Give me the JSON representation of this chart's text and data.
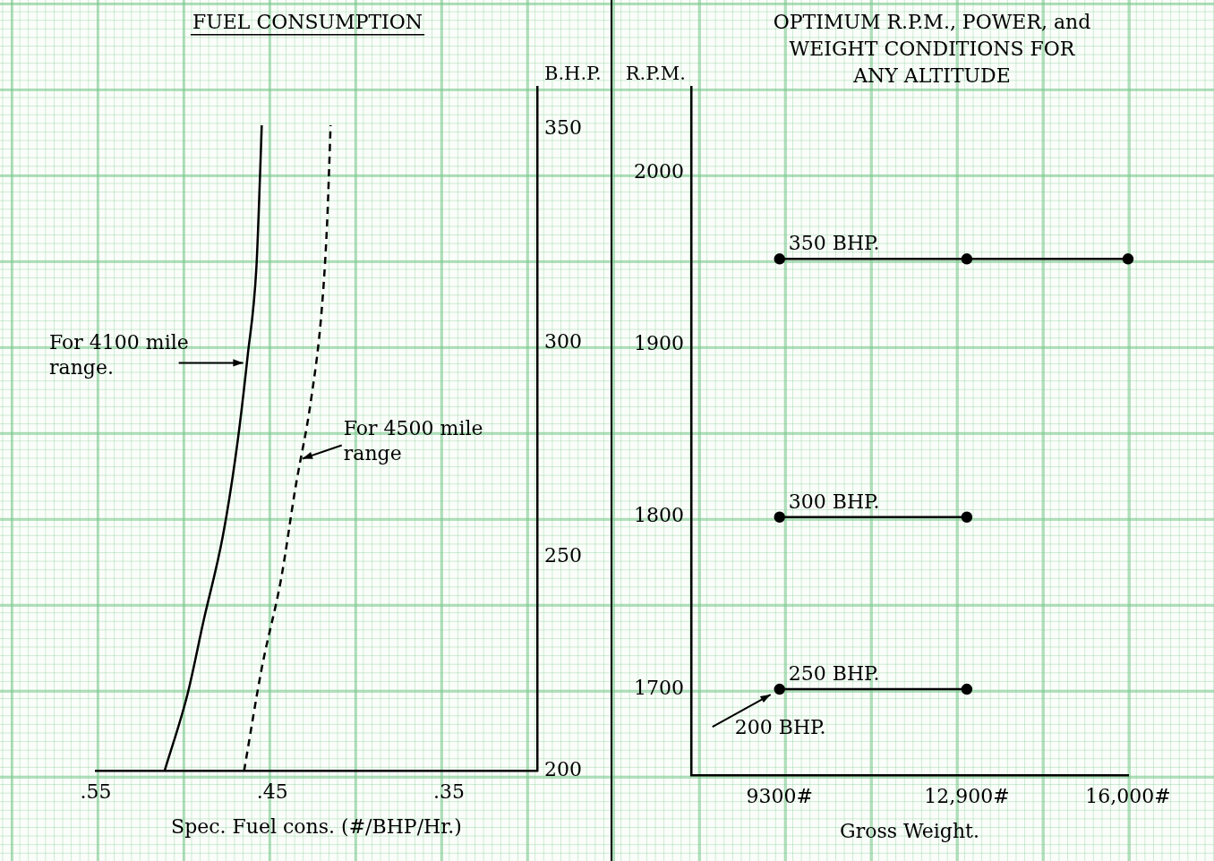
{
  "chart_data": [
    {
      "type": "line",
      "title": "FUEL CONSUMPTION",
      "xlabel": "Spec. Fuel cons. (#/BHP/Hr.)",
      "ylabel": "B.H.P.",
      "series": [
        {
          "color": "#000000",
          "line_style": "solid",
          "x": [
            0.511,
            0.498,
            0.489,
            0.478,
            0.47,
            0.464,
            0.459,
            0.457,
            0.456
          ],
          "values": [
            200,
            218,
            235,
            255,
            276,
            297,
            318,
            339,
            351
          ]
        },
        {
          "color": "#000000",
          "line_style": "dashed",
          "x": [
            0.466,
            0.456,
            0.445,
            0.437,
            0.428,
            0.422,
            0.419,
            0.417
          ],
          "values": [
            200,
            224,
            245,
            266,
            287,
            308,
            328,
            351
          ]
        }
      ],
      "xlim": [
        0.55,
        0.3
      ],
      "xticks": [
        {
          "value": 0.55,
          "label": ".55"
        },
        {
          "value": 0.45,
          "label": ".45"
        },
        {
          "value": 0.35,
          "label": ".35"
        }
      ],
      "ylim": [
        200,
        360
      ],
      "yticks": [
        200,
        250,
        300,
        350
      ],
      "marker": "none",
      "annotations": [
        {
          "text": "For 4100 mile\nrange.",
          "x": 0.465,
          "y": 295
        },
        {
          "text": "For 4500 mile\nrange",
          "x": 0.434,
          "y": 273
        }
      ]
    },
    {
      "type": "line",
      "title": "OPTIMUM R.P.M., POWER, and\nWEIGHT CONDITIONS FOR\nANY ALTITUDE",
      "xlabel": "Gross Weight.",
      "ylabel": "R.P.M.",
      "series": [
        {
          "name": "350 BHP.",
          "color": "#000000",
          "x": [
            9300,
            12900,
            16000
          ],
          "values": [
            1950,
            1950,
            1950
          ]
        },
        {
          "name": "300 BHP.",
          "color": "#000000",
          "x": [
            9300,
            12900
          ],
          "values": [
            1800,
            1800
          ]
        },
        {
          "name": "250 BHP.",
          "color": "#000000",
          "x": [
            9300,
            12900
          ],
          "values": [
            1700,
            1700
          ]
        }
      ],
      "xlim": [
        7600,
        16000
      ],
      "xticks": [
        {
          "value": 9300,
          "label": "9300#"
        },
        {
          "value": 12900,
          "label": "12,900#"
        },
        {
          "value": 16000,
          "label": "16,000#"
        }
      ],
      "ylim": [
        1650,
        2050
      ],
      "yticks": [
        1700,
        1800,
        1900,
        2000
      ],
      "marker": "circle",
      "annotations": [
        {
          "text": "200 BHP.",
          "x": 9300,
          "y": 1700
        }
      ]
    }
  ]
}
